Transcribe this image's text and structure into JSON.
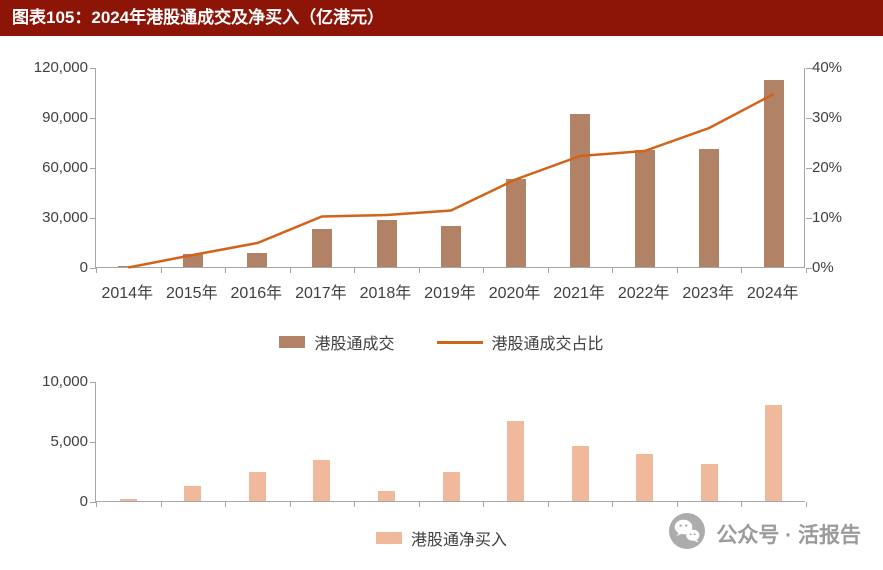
{
  "title": "图表105：2024年港股通成交及净买入（亿港元）",
  "colors": {
    "title_bar_bg": "#8C1508",
    "title_text": "#FFFFFF",
    "turnover_bar": "#B28266",
    "ratio_line": "#D2641A",
    "netbuy_bar": "#F0B99B",
    "axis_text": "#404040",
    "axis_line": "#A6A6A6",
    "watermark_text": "#9B9B9B"
  },
  "chart_data": [
    {
      "type": "bar+line dual-axis",
      "categories": [
        "2014年",
        "2015年",
        "2016年",
        "2017年",
        "2018年",
        "2019年",
        "2020年",
        "2021年",
        "2022年",
        "2023年",
        "2024年"
      ],
      "series": [
        {
          "name": "港股通成交",
          "type": "bar",
          "axis": "left",
          "color": "#B28266",
          "values": [
            900,
            8000,
            8600,
            22800,
            28300,
            24500,
            53000,
            92000,
            70500,
            71000,
            112000
          ]
        },
        {
          "name": "港股通成交占比",
          "type": "line",
          "axis": "right",
          "color": "#D2641A",
          "values": [
            0.1,
            2.6,
            5.0,
            10.3,
            10.6,
            11.5,
            17.7,
            22.4,
            23.4,
            28.0,
            34.8
          ]
        }
      ],
      "left_axis": {
        "ticks": [
          "0",
          "30,000",
          "60,000",
          "90,000",
          "120,000"
        ],
        "min": 0,
        "max": 120000
      },
      "right_axis": {
        "ticks": [
          "0%",
          "10%",
          "20%",
          "30%",
          "40%"
        ],
        "min": 0,
        "max": 40
      },
      "legend_position": "bottom",
      "grid": false
    },
    {
      "type": "bar",
      "categories": [
        "2014年",
        "2015年",
        "2016年",
        "2017年",
        "2018年",
        "2019年",
        "2020年",
        "2021年",
        "2022年",
        "2023年",
        "2024年"
      ],
      "series": [
        {
          "name": "港股通净买入",
          "type": "bar",
          "axis": "left",
          "color": "#F0B99B",
          "values": [
            150,
            1250,
            2450,
            3400,
            830,
            2450,
            6650,
            4600,
            3900,
            3100,
            8000
          ]
        }
      ],
      "left_axis": {
        "ticks": [
          "0",
          "5,000",
          "10,000"
        ],
        "min": 0,
        "max": 10000
      },
      "legend_position": "bottom",
      "grid": false,
      "x_labels_visible": false
    }
  ],
  "watermark": {
    "text": "公众号 · 活报告",
    "icon": "wechat-chat-bubbles-icon"
  }
}
